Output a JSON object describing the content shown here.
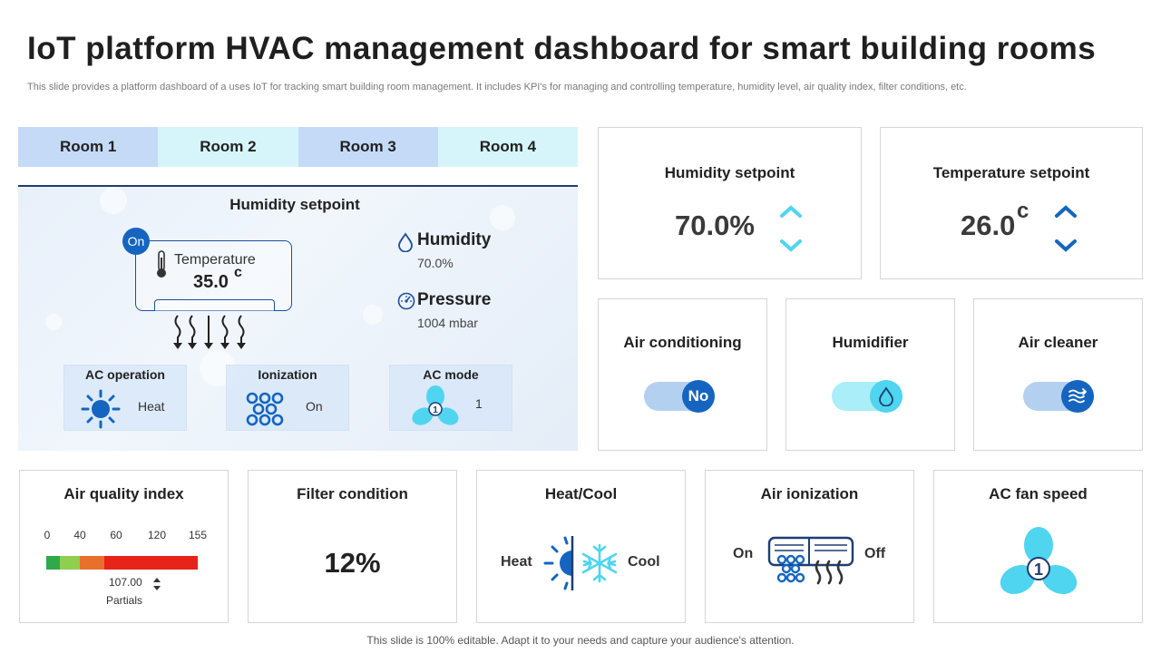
{
  "header": {
    "title": "IoT platform HVAC management dashboard for smart building rooms",
    "subtitle": "This slide provides a platform dashboard of a uses IoT for tracking smart building room management. It includes KPI's for managing and controlling temperature, humidity level, air quality index, filter conditions, etc."
  },
  "rooms": {
    "tabs": [
      {
        "label": "Room 1"
      },
      {
        "label": "Room 2"
      },
      {
        "label": "Room 3"
      },
      {
        "label": "Room 4"
      }
    ],
    "panel": {
      "title": "Humidity setpoint",
      "power_badge": "On",
      "temperature_label": "Temperature",
      "temperature_value": "35.0",
      "temperature_unit": "c",
      "humidity_label": "Humidity",
      "humidity_value": "70.0%",
      "pressure_label": "Pressure",
      "pressure_value": "1004 mbar",
      "ac_operation_label": "AC operation",
      "ac_operation_value": "Heat",
      "ionization_label": "Ionization",
      "ionization_value": "On",
      "ac_mode_label": "AC mode",
      "ac_mode_value": "1",
      "fan_hub_label": "1"
    }
  },
  "setpoints": {
    "humidity": {
      "title": "Humidity setpoint",
      "value": "70.0%"
    },
    "temperature": {
      "title": "Temperature setpoint",
      "value": "26.0",
      "unit": "c"
    }
  },
  "devices": {
    "air_conditioning": {
      "title": "Air conditioning",
      "knob_label": "No"
    },
    "humidifier": {
      "title": "Humidifier"
    },
    "air_cleaner": {
      "title": "Air cleaner"
    }
  },
  "air_quality": {
    "title": "Air quality index",
    "ticks": [
      "0",
      "40",
      "60",
      "120",
      "155"
    ],
    "reading": "107.00",
    "reading_label": "Partials",
    "segment_colors": [
      "#2eaa4a",
      "#8fce4f",
      "#e86f2c",
      "#e8231a"
    ]
  },
  "filter": {
    "title": "Filter condition",
    "value": "12%"
  },
  "heat_cool": {
    "title": "Heat/Cool",
    "heat_label": "Heat",
    "cool_label": "Cool"
  },
  "air_ionization": {
    "title": "Air ionization",
    "on_label": "On",
    "off_label": "Off"
  },
  "fan_speed": {
    "title": "AC fan speed",
    "value": "1"
  },
  "colors": {
    "accent": "#1565c0",
    "cyan": "#4fd5ef",
    "navy": "#1e3d73"
  },
  "footer": {
    "text": "This slide is 100% editable. Adapt it to your needs and capture your audience's attention."
  }
}
